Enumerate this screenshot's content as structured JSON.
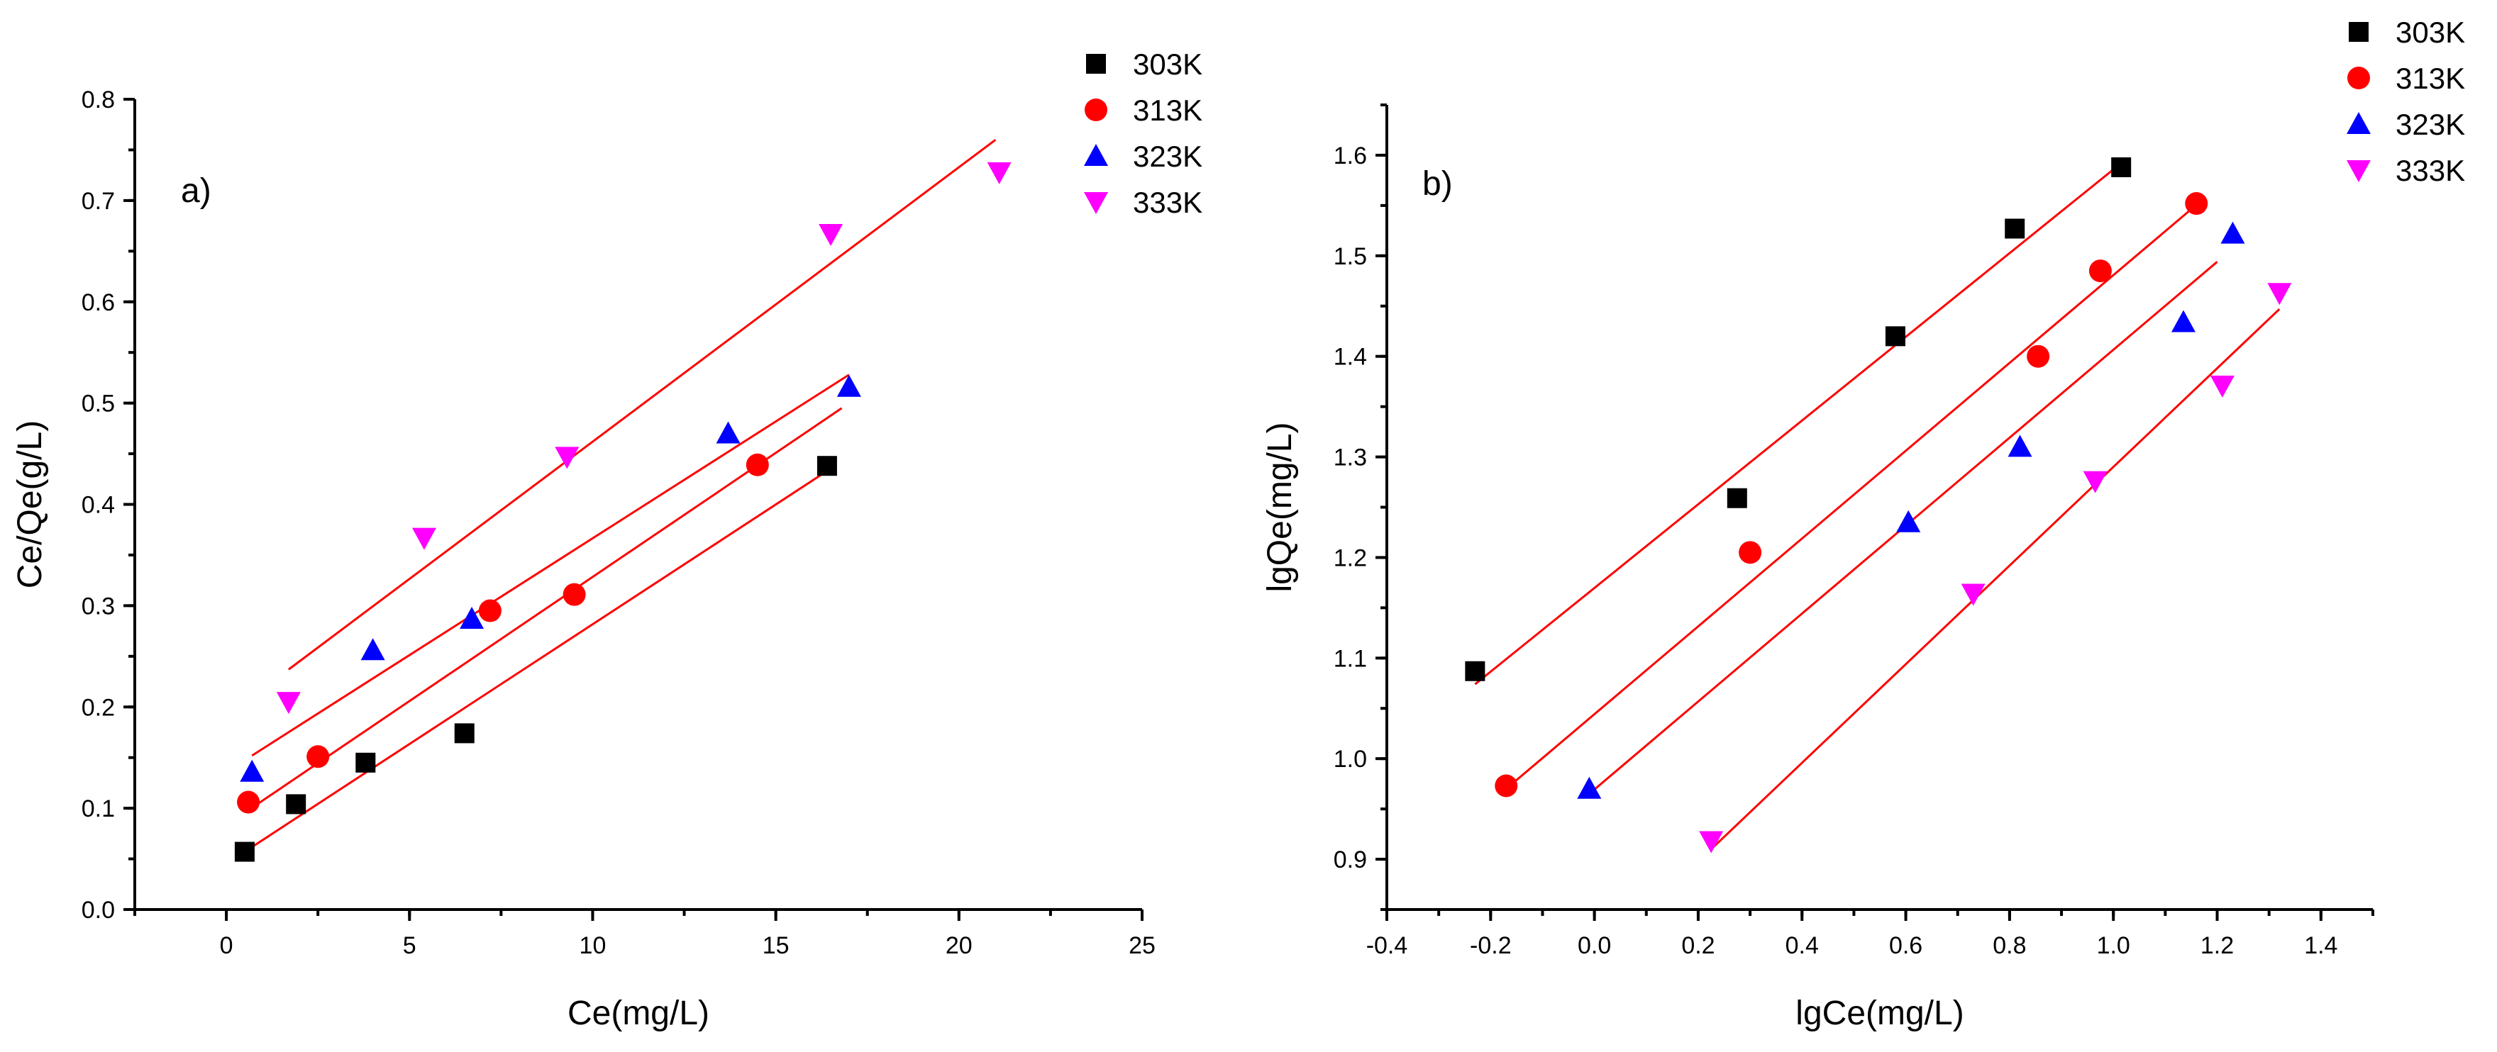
{
  "chart_data": [
    {
      "type": "scatter",
      "panel_label": "a)",
      "xlabel": "Ce(mg/L)",
      "ylabel": "Ce/Qe(g/L)",
      "xlim": [
        -2.5,
        25
      ],
      "ylim": [
        0,
        0.8
      ],
      "xticks": [
        0,
        5,
        10,
        15,
        20,
        25
      ],
      "xtick_labels": [
        "0",
        "5",
        "10",
        "15",
        "20",
        "25"
      ],
      "yticks": [
        0,
        0.1,
        0.2,
        0.3,
        0.4,
        0.5,
        0.6,
        0.7,
        0.8
      ],
      "ytick_labels": [
        "0.0",
        "0.1",
        "0.2",
        "0.3",
        "0.4",
        "0.5",
        "0.6",
        "0.7",
        "0.8"
      ],
      "legend_position": "top-right",
      "series": [
        {
          "name": "303K",
          "marker": "square",
          "color": "#000000",
          "x": [
            0.5,
            1.9,
            3.8,
            6.5,
            16.4
          ],
          "y": [
            0.057,
            0.104,
            0.145,
            0.174,
            0.438
          ],
          "fit": [
            [
              0.5,
              0.057
            ],
            [
              16.4,
              0.433
            ]
          ]
        },
        {
          "name": "313K",
          "marker": "circle",
          "color": "#ff0000",
          "x": [
            0.6,
            2.5,
            7.2,
            9.5,
            14.5
          ],
          "y": [
            0.106,
            0.151,
            0.295,
            0.311,
            0.439
          ],
          "fit": [
            [
              0.6,
              0.098
            ],
            [
              16.8,
              0.495
            ]
          ]
        },
        {
          "name": "323K",
          "marker": "triangle-up",
          "color": "#0000ff",
          "x": [
            0.7,
            4.0,
            6.7,
            13.7,
            17.0
          ],
          "y": [
            0.136,
            0.256,
            0.287,
            0.47,
            0.516
          ],
          "fit": [
            [
              0.7,
              0.152
            ],
            [
              17.0,
              0.528
            ]
          ]
        },
        {
          "name": "333K",
          "marker": "triangle-down",
          "color": "#ff00ff",
          "x": [
            1.7,
            5.4,
            9.3,
            16.5,
            21.1
          ],
          "y": [
            0.205,
            0.367,
            0.447,
            0.667,
            0.728
          ],
          "fit": [
            [
              1.7,
              0.237
            ],
            [
              21.0,
              0.76
            ]
          ]
        }
      ]
    },
    {
      "type": "scatter",
      "panel_label": "b)",
      "xlabel": "lgCe(mg/L)",
      "ylabel": "lgQe(mg/L)",
      "xlim": [
        -0.4,
        1.5
      ],
      "ylim": [
        0.85,
        1.65
      ],
      "xticks": [
        -0.4,
        -0.2,
        0.0,
        0.2,
        0.4,
        0.6,
        0.8,
        1.0,
        1.2,
        1.4
      ],
      "xtick_labels": [
        "-0.4",
        "-0.2",
        "0.0",
        "0.2",
        "0.4",
        "0.6",
        "0.8",
        "1.0",
        "1.2",
        "1.4"
      ],
      "yticks": [
        0.9,
        1.0,
        1.1,
        1.2,
        1.3,
        1.4,
        1.5,
        1.6
      ],
      "ytick_labels": [
        "0.9",
        "1.0",
        "1.1",
        "1.2",
        "1.3",
        "1.4",
        "1.5",
        "1.6"
      ],
      "legend_position": "top-right",
      "series": [
        {
          "name": "303K",
          "marker": "square",
          "color": "#000000",
          "x": [
            -0.23,
            0.275,
            0.58,
            0.81,
            1.015
          ],
          "y": [
            1.087,
            1.259,
            1.42,
            1.527,
            1.588
          ],
          "fit": [
            [
              -0.23,
              1.074
            ],
            [
              1.01,
              1.59
            ]
          ]
        },
        {
          "name": "313K",
          "marker": "circle",
          "color": "#ff0000",
          "x": [
            -0.17,
            0.3,
            0.855,
            0.975,
            1.16
          ],
          "y": [
            0.973,
            1.205,
            1.4,
            1.485,
            1.552
          ],
          "fit": [
            [
              -0.17,
              0.97
            ],
            [
              1.17,
              1.555
            ]
          ]
        },
        {
          "name": "323K",
          "marker": "triangle-up",
          "color": "#0000ff",
          "x": [
            -0.01,
            0.605,
            0.82,
            1.135,
            1.23
          ],
          "y": [
            0.97,
            1.235,
            1.31,
            1.434,
            1.522
          ],
          "fit": [
            [
              -0.01,
              0.965
            ],
            [
              1.2,
              1.494
            ]
          ]
        },
        {
          "name": "333K",
          "marker": "triangle-down",
          "color": "#ff00ff",
          "x": [
            0.225,
            0.73,
            0.965,
            1.21,
            1.32
          ],
          "y": [
            0.918,
            1.164,
            1.276,
            1.371,
            1.463
          ],
          "fit": [
            [
              0.225,
              0.91
            ],
            [
              1.32,
              1.447
            ]
          ]
        }
      ]
    }
  ]
}
